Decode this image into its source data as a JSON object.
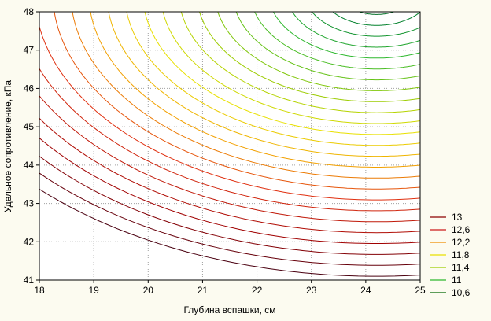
{
  "chart_data": {
    "type": "contour",
    "xlabel": "Глубина вспашки, см",
    "ylabel": "Удельное сопротивление, кПа",
    "xlim": [
      18,
      25
    ],
    "ylim": [
      41,
      48
    ],
    "x_ticks": [
      "18",
      "19",
      "20",
      "21",
      "22",
      "23",
      "24",
      "25"
    ],
    "y_ticks": [
      "41",
      "42",
      "43",
      "44",
      "45",
      "46",
      "47",
      "48"
    ],
    "grid": true,
    "legend_position": "right",
    "legend": [
      {
        "label": "13",
        "color": "#8b0000"
      },
      {
        "label": "12,6",
        "color": "#cc1a1a"
      },
      {
        "label": "12,2",
        "color": "#f08c00"
      },
      {
        "label": "11,8",
        "color": "#e8e000"
      },
      {
        "label": "11,4",
        "color": "#9ccc00"
      },
      {
        "label": "11",
        "color": "#2eb82e"
      },
      {
        "label": "10,6",
        "color": "#006600"
      }
    ],
    "contour_levels": {
      "start": 10.5,
      "step": 0.1,
      "count": 27
    },
    "surface_center": {
      "x": 24.2,
      "y": 48.5
    },
    "color_stops": [
      {
        "level": 10.5,
        "color": "#004d1a"
      },
      {
        "level": 10.8,
        "color": "#00802b"
      },
      {
        "level": 11.1,
        "color": "#2eb82e"
      },
      {
        "level": 11.5,
        "color": "#9ccc00"
      },
      {
        "level": 11.8,
        "color": "#e8e000"
      },
      {
        "level": 12.1,
        "color": "#f2a000"
      },
      {
        "level": 12.4,
        "color": "#e03010"
      },
      {
        "level": 12.8,
        "color": "#a00000"
      },
      {
        "level": 13.1,
        "color": "#4a0010"
      }
    ]
  }
}
